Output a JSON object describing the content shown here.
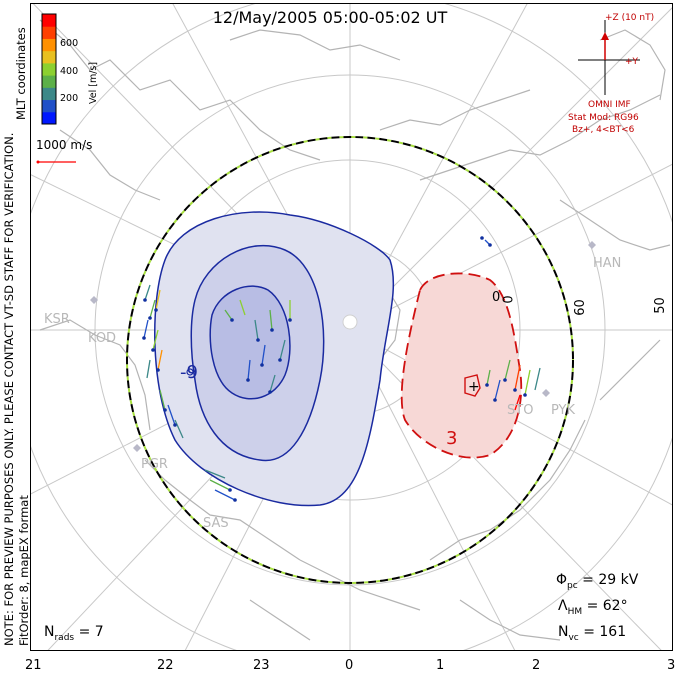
{
  "title": "12/May/2005 05:00-05:02 UT",
  "side_labels": {
    "coords": "MLT coordinates",
    "preview_note": "NOTE: FOR PREVIEW PURPOSES ONLY. PLEASE CONTACT VT-SD STAFF FOR VERIFICATION.",
    "fit": "FitOrder: 8,  mapEX format"
  },
  "colorbar": {
    "title": "Vel [m/s]",
    "ticks": [
      "600",
      "400",
      "200"
    ],
    "colors": [
      "#0018ff",
      "#2050c8",
      "#3c8888",
      "#5cb048",
      "#8cd030",
      "#e8c020",
      "#ff9000",
      "#ff4000",
      "#ff0000"
    ]
  },
  "scale_vector": {
    "label": "1000 m/s",
    "color": "#ff0000"
  },
  "imf": {
    "z_label": "+Z (10 nT)",
    "y_label": "+Y",
    "omni": "OMNI IMF",
    "model": "Stat Mod: RG96",
    "cond": "Bz+, 4<BT<6",
    "color": "#d00000"
  },
  "stats": {
    "phi_sym": "Φ",
    "phi_sub": "pc",
    "phi_val": "= 29 kV",
    "lam_sym": "Λ",
    "lam_sub": "HM",
    "lam_val": "= 62°",
    "nvc_sym": "N",
    "nvc_sub": "vc",
    "nvc_val": "= 161",
    "nrads_sym": "N",
    "nrads_sub": "rads",
    "nrads_val": "= 7"
  },
  "mlt_axis": [
    "21",
    "22",
    "23",
    "0",
    "1",
    "2",
    "3"
  ],
  "lat_labels": [
    "60",
    "50",
    "0",
    "0"
  ],
  "sites": [
    "KSR",
    "KOD",
    "PGR",
    "SAS",
    "STO",
    "PYK",
    "HAN"
  ],
  "contours": {
    "negative_label": "-9",
    "positive_label": "3",
    "negative_color": "#1a2aa0",
    "positive_color": "#d01010"
  }
}
